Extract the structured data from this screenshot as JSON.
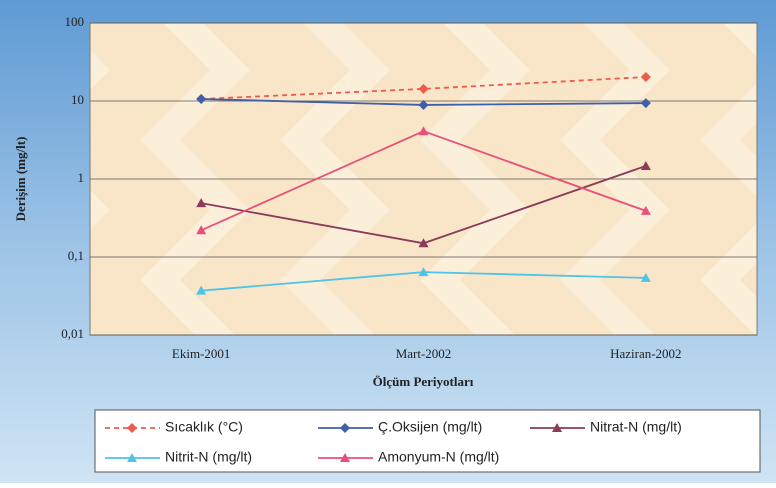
{
  "chart_data": {
    "type": "line",
    "y_label": "Derişim (mg/lt)",
    "x_label": "Ölçüm Periyotları",
    "categories": [
      "Ekim-2001",
      "Mart-2002",
      "Haziran-2002"
    ],
    "log_y": true,
    "ylim": [
      0.01,
      100
    ],
    "yticks": [
      {
        "value": 0.01,
        "label": "0,01"
      },
      {
        "value": 0.1,
        "label": "0,1"
      },
      1,
      10,
      100
    ],
    "grid": true,
    "legend": "bottom",
    "series": [
      {
        "name": "Sıcaklık (°C)",
        "color": "#f05a4a",
        "dashed": true,
        "marker": "diamond",
        "values": [
          10.6,
          14.3,
          20.3
        ]
      },
      {
        "name": "Ç.Oksijen (mg/lt)",
        "color": "#3f5fa8",
        "dashed": false,
        "marker": "diamond",
        "values": [
          10.6,
          8.9,
          9.4
        ]
      },
      {
        "name": "Nitrat-N (mg/lt)",
        "color": "#8b3a5a",
        "dashed": false,
        "marker": "triangle",
        "values": [
          0.49,
          0.15,
          1.47
        ]
      },
      {
        "name": "Nitrit-N (mg/lt)",
        "color": "#4fc3e8",
        "dashed": false,
        "marker": "triangle",
        "values": [
          0.037,
          0.064,
          0.054
        ]
      },
      {
        "name": "Amonyum-N (mg/lt)",
        "color": "#e8507a",
        "dashed": false,
        "marker": "triangle",
        "values": [
          0.22,
          4.1,
          0.39
        ]
      }
    ]
  }
}
